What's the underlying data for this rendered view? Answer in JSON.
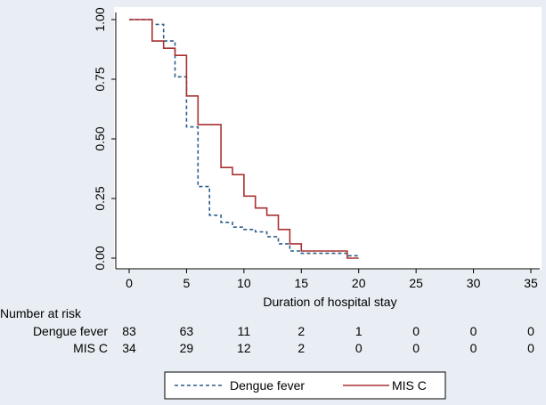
{
  "chart_data": {
    "type": "line",
    "subtype": "kaplan-meier step curve",
    "xlabel": "Duration of hospital stay",
    "ylabel": "",
    "xlim": [
      0,
      35
    ],
    "ylim": [
      0,
      1
    ],
    "x_ticks": [
      "0",
      "5",
      "10",
      "15",
      "20",
      "25",
      "30",
      "35"
    ],
    "y_ticks": [
      "0.00",
      "0.25",
      "0.50",
      "0.75",
      "1.00"
    ],
    "grid": false,
    "series": [
      {
        "name": "Dengue fever",
        "color": "#2e5c8a",
        "dash": "dashed",
        "points": [
          [
            0,
            1.0
          ],
          [
            2,
            1.0
          ],
          [
            2,
            0.98
          ],
          [
            3,
            0.98
          ],
          [
            3,
            0.91
          ],
          [
            4,
            0.91
          ],
          [
            4,
            0.76
          ],
          [
            5,
            0.76
          ],
          [
            5,
            0.55
          ],
          [
            6,
            0.55
          ],
          [
            6,
            0.3
          ],
          [
            7,
            0.3
          ],
          [
            7,
            0.18
          ],
          [
            8,
            0.18
          ],
          [
            8,
            0.15
          ],
          [
            9,
            0.15
          ],
          [
            9,
            0.13
          ],
          [
            10,
            0.13
          ],
          [
            10,
            0.12
          ],
          [
            11,
            0.12
          ],
          [
            11,
            0.11
          ],
          [
            12,
            0.11
          ],
          [
            12,
            0.09
          ],
          [
            13,
            0.09
          ],
          [
            13,
            0.06
          ],
          [
            14,
            0.06
          ],
          [
            14,
            0.03
          ],
          [
            15,
            0.03
          ],
          [
            15,
            0.02
          ],
          [
            19,
            0.02
          ],
          [
            19,
            0.01
          ],
          [
            20,
            0.01
          ]
        ]
      },
      {
        "name": "MIS C",
        "color": "#a83232",
        "dash": "solid",
        "points": [
          [
            0,
            1.0
          ],
          [
            2,
            1.0
          ],
          [
            2,
            0.91
          ],
          [
            3,
            0.91
          ],
          [
            3,
            0.88
          ],
          [
            4,
            0.88
          ],
          [
            4,
            0.85
          ],
          [
            5,
            0.85
          ],
          [
            5,
            0.68
          ],
          [
            6,
            0.68
          ],
          [
            6,
            0.56
          ],
          [
            8,
            0.56
          ],
          [
            8,
            0.38
          ],
          [
            9,
            0.38
          ],
          [
            9,
            0.35
          ],
          [
            10,
            0.35
          ],
          [
            10,
            0.26
          ],
          [
            11,
            0.26
          ],
          [
            11,
            0.21
          ],
          [
            12,
            0.21
          ],
          [
            12,
            0.18
          ],
          [
            13,
            0.18
          ],
          [
            13,
            0.12
          ],
          [
            14,
            0.12
          ],
          [
            14,
            0.06
          ],
          [
            15,
            0.06
          ],
          [
            15,
            0.03
          ],
          [
            19,
            0.03
          ],
          [
            19,
            0.0
          ],
          [
            20,
            0.0
          ]
        ]
      }
    ],
    "risk_table": {
      "heading": "Number at risk",
      "rows": [
        {
          "label": "Dengue fever",
          "values": [
            "83",
            "63",
            "11",
            "2",
            "1",
            "0",
            "0",
            "0"
          ]
        },
        {
          "label": "MIS C",
          "values": [
            "34",
            "29",
            "12",
            "2",
            "0",
            "0",
            "0",
            "0"
          ]
        }
      ]
    },
    "legend": {
      "placement": "bottom",
      "entries": [
        "Dengue fever",
        "MIS C"
      ]
    }
  }
}
